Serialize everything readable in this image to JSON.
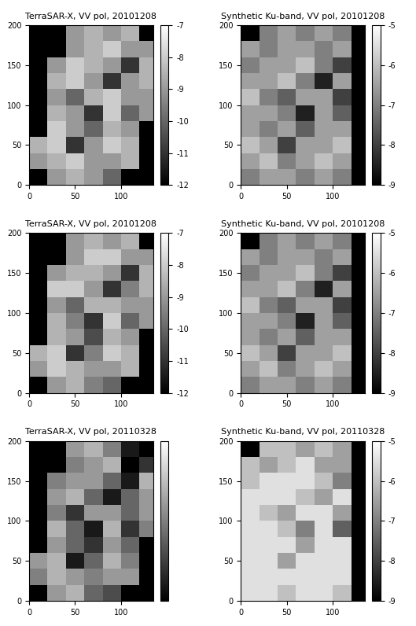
{
  "chart_data": [
    {
      "type": "heatmap",
      "title": "TerraSAR-X, VV pol, 20101208",
      "xlim": [
        0,
        135
      ],
      "ylim": [
        0,
        200
      ],
      "xticks": [
        0,
        50,
        100
      ],
      "yticks": [
        0,
        50,
        100,
        150,
        200
      ],
      "x_edges": [
        0,
        20,
        40,
        60,
        80,
        100,
        120,
        140
      ],
      "y_edges": [
        0,
        20,
        40,
        60,
        80,
        100,
        120,
        140,
        160,
        180,
        200
      ],
      "color_range": [
        -12,
        -7
      ],
      "colorbar_ticks": [
        -12,
        -11,
        -10,
        -9,
        -8,
        -7
      ],
      "cells": [
        [
          null,
          -9,
          -8.5,
          -9,
          -10,
          null,
          null
        ],
        [
          -9,
          -8.5,
          -8,
          -9,
          -9,
          -8.5,
          null
        ],
        [
          -8.5,
          -8,
          -11,
          -9,
          -8,
          -8.5,
          null
        ],
        [
          null,
          -8,
          -9,
          -10,
          -8.5,
          -9,
          null
        ],
        [
          null,
          -8.5,
          -9,
          -11,
          -8,
          -10,
          -9
        ],
        [
          null,
          -9,
          -10,
          -8.5,
          -8,
          -9,
          -9
        ],
        [
          null,
          -8.5,
          -8,
          -9,
          -11,
          -9,
          -8.5
        ],
        [
          null,
          -9,
          -8,
          -8.5,
          -9,
          -11,
          -8.5
        ],
        [
          null,
          null,
          -9,
          -8.5,
          -8,
          -9,
          -9
        ],
        [
          null,
          null,
          -9,
          -8.5,
          -9,
          -8.5,
          null
        ]
      ]
    },
    {
      "type": "heatmap",
      "title": "Synthetic Ku-band, VV pol, 20101208",
      "xlim": [
        0,
        135
      ],
      "ylim": [
        0,
        200
      ],
      "xticks": [
        0,
        50,
        100
      ],
      "yticks": [
        0,
        50,
        100,
        150,
        200
      ],
      "x_edges": [
        0,
        20,
        40,
        60,
        80,
        100,
        120,
        140
      ],
      "y_edges": [
        0,
        20,
        40,
        60,
        80,
        100,
        120,
        140,
        160,
        180,
        200
      ],
      "color_range": [
        -9,
        -5
      ],
      "colorbar_ticks": [
        -9,
        -8,
        -7,
        -6,
        -5
      ],
      "cells": [
        [
          -7,
          -6.5,
          -6.5,
          -7,
          -6.5,
          -7,
          null
        ],
        [
          -6.5,
          -6,
          -7,
          -6.5,
          -6,
          -6.5,
          null
        ],
        [
          -6,
          -6.5,
          -8,
          -6.5,
          -6.5,
          -6,
          null
        ],
        [
          -6.5,
          -7,
          -6.5,
          -7.5,
          -6.5,
          -6.5,
          null
        ],
        [
          -6.5,
          -6.5,
          -7,
          -8.5,
          -6.5,
          -7.5,
          null
        ],
        [
          -6,
          -7,
          -7.5,
          -6.5,
          -6.5,
          -8,
          null
        ],
        [
          -6.5,
          -6.5,
          -6,
          -7,
          -8.5,
          -6.5,
          null
        ],
        [
          -7,
          -6.5,
          -6.5,
          -6,
          -7,
          -8,
          null
        ],
        [
          -6.5,
          -7,
          -6.5,
          -6.5,
          -7,
          -6.5,
          null
        ],
        [
          null,
          -7,
          -6.5,
          -7,
          -6.5,
          -7,
          null
        ]
      ]
    },
    {
      "type": "heatmap",
      "title": "TerraSAR-X, VV pol, 20101208",
      "xlim": [
        0,
        135
      ],
      "ylim": [
        0,
        200
      ],
      "xticks": [
        0,
        50,
        100
      ],
      "yticks": [
        0,
        50,
        100,
        150,
        200
      ],
      "x_edges": [
        0,
        20,
        40,
        60,
        80,
        100,
        120,
        140
      ],
      "y_edges": [
        0,
        20,
        40,
        60,
        80,
        100,
        120,
        140,
        160,
        180,
        200
      ],
      "color_range": [
        -12,
        -7
      ],
      "colorbar_ticks": [
        -12,
        -11,
        -10,
        -9,
        -8,
        -7
      ],
      "cells": [
        [
          null,
          -9,
          -8.5,
          -9.5,
          -10,
          null,
          null
        ],
        [
          -9,
          -8,
          -8.5,
          -9,
          -9,
          -8.5,
          null
        ],
        [
          -8.5,
          -8,
          -11,
          -9.5,
          -8,
          -8.5,
          null
        ],
        [
          null,
          -8.5,
          -9,
          -10.5,
          -8.5,
          -9,
          null
        ],
        [
          null,
          -8.5,
          -9.5,
          -11,
          -8,
          -10,
          -9
        ],
        [
          null,
          -9,
          -10,
          -8.5,
          -8.5,
          -9,
          -9
        ],
        [
          null,
          -8,
          -8,
          -9,
          -11,
          -9.5,
          -8.5
        ],
        [
          null,
          -9,
          -8.5,
          -8.5,
          -9,
          -11,
          -8.5
        ],
        [
          null,
          null,
          -9,
          -8,
          -8,
          -9,
          -9
        ],
        [
          null,
          null,
          -9,
          -8.5,
          -9,
          -8.5,
          null
        ]
      ]
    },
    {
      "type": "heatmap",
      "title": "Synthetic Ku-band, VV pol, 20101208",
      "xlim": [
        0,
        135
      ],
      "ylim": [
        0,
        200
      ],
      "xticks": [
        0,
        50,
        100
      ],
      "yticks": [
        0,
        50,
        100,
        150,
        200
      ],
      "x_edges": [
        0,
        20,
        40,
        60,
        80,
        100,
        120,
        140
      ],
      "y_edges": [
        0,
        20,
        40,
        60,
        80,
        100,
        120,
        140,
        160,
        180,
        200
      ],
      "color_range": [
        -9,
        -5
      ],
      "colorbar_ticks": [
        -9,
        -8,
        -7,
        -6,
        -5
      ],
      "cells": [
        [
          -7,
          -6.5,
          -6.5,
          -7,
          -6.5,
          -7,
          null
        ],
        [
          -6.5,
          -6,
          -7,
          -6.5,
          -6,
          -6.5,
          null
        ],
        [
          -6,
          -6.5,
          -8,
          -6.5,
          -6.5,
          -6,
          null
        ],
        [
          -6.5,
          -7,
          -6.5,
          -7.5,
          -6.5,
          -6.5,
          null
        ],
        [
          -6.5,
          -6.5,
          -7,
          -8.5,
          -6.5,
          -7.5,
          null
        ],
        [
          -6,
          -7,
          -7.5,
          -6.5,
          -6.5,
          -8,
          null
        ],
        [
          -6.5,
          -6.5,
          -6,
          -7,
          -8.5,
          -6.5,
          null
        ],
        [
          -7,
          -6.5,
          -6.5,
          -6,
          -7,
          -8,
          null
        ],
        [
          -6.5,
          -7,
          -6.5,
          -6.5,
          -7,
          -6.5,
          null
        ],
        [
          null,
          -7,
          -6.5,
          -7,
          -6.5,
          -7,
          null
        ]
      ]
    },
    {
      "type": "heatmap",
      "title": "TerraSAR-X, VV pol, 20110328",
      "xlim": [
        0,
        135
      ],
      "ylim": [
        0,
        200
      ],
      "xticks": [
        0,
        50,
        100
      ],
      "yticks": [
        0,
        50,
        100,
        150,
        200
      ],
      "x_edges": [
        0,
        20,
        40,
        60,
        80,
        100,
        120,
        140
      ],
      "y_edges": [
        0,
        20,
        40,
        60,
        80,
        100,
        120,
        140,
        160,
        180,
        200
      ],
      "color_range": [
        -12,
        -7
      ],
      "colorbar_ticks": [],
      "cells": [
        [
          null,
          -9,
          -8.5,
          -10,
          -10.5,
          null,
          null
        ],
        [
          -9.5,
          -8.5,
          -9,
          -9.5,
          -9,
          -9,
          null
        ],
        [
          -9,
          -8.5,
          -11.5,
          -10,
          -8.5,
          -9.5,
          null
        ],
        [
          null,
          -9,
          -10,
          -11,
          -9,
          -10,
          null
        ],
        [
          null,
          -8.5,
          -10,
          -11.5,
          -8.5,
          -11,
          -9.5
        ],
        [
          null,
          -9.5,
          -11,
          -9,
          -9,
          -10,
          -9
        ],
        [
          null,
          -9,
          -8.5,
          -10,
          -11.5,
          -10,
          -9
        ],
        [
          null,
          -9.5,
          -9,
          -9,
          -10,
          -11.5,
          -8.5
        ],
        [
          null,
          null,
          -9.5,
          -9,
          -8.5,
          -12,
          -11
        ],
        [
          null,
          null,
          -9,
          -8.5,
          -9.5,
          -11.5,
          null
        ]
      ]
    },
    {
      "type": "heatmap",
      "title": "Synthetic Ku-band, VV pol, 20110328",
      "xlim": [
        0,
        135
      ],
      "ylim": [
        0,
        200
      ],
      "xticks": [
        0,
        50,
        100
      ],
      "yticks": [
        0,
        50,
        100,
        150,
        200
      ],
      "x_edges": [
        0,
        20,
        40,
        60,
        80,
        100,
        120,
        140
      ],
      "y_edges": [
        0,
        20,
        40,
        60,
        80,
        100,
        120,
        140,
        160,
        180,
        200
      ],
      "color_range": [
        -9,
        -5
      ],
      "colorbar_ticks": [
        -9,
        -8,
        -7,
        -6,
        -5
      ],
      "cells": [
        [
          -5.5,
          -5.5,
          -6,
          -5.5,
          -5.5,
          -6,
          null
        ],
        [
          -5.5,
          -5.5,
          -5.5,
          -5.5,
          -5.5,
          -5.5,
          null
        ],
        [
          -5.5,
          -5.5,
          -6.5,
          -5.5,
          -5.5,
          -5.5,
          null
        ],
        [
          -5.5,
          -5.5,
          -5.5,
          -6.5,
          -5.5,
          -5.5,
          null
        ],
        [
          -5.5,
          -5.5,
          -6,
          -7,
          -5.5,
          -7.5,
          null
        ],
        [
          -5.5,
          -6,
          -6.5,
          -5.5,
          -5.5,
          -6.5,
          null
        ],
        [
          -5.5,
          -5.5,
          -5.5,
          -6,
          -6.5,
          -5.5,
          null
        ],
        [
          -6,
          -5.5,
          -5.5,
          -5.5,
          -6,
          -7,
          null
        ],
        [
          -6,
          -6.5,
          -6,
          -5.5,
          -6.5,
          -6.5,
          null
        ],
        [
          null,
          -6,
          -6,
          -6.5,
          -6,
          -6.5,
          null
        ]
      ]
    }
  ]
}
